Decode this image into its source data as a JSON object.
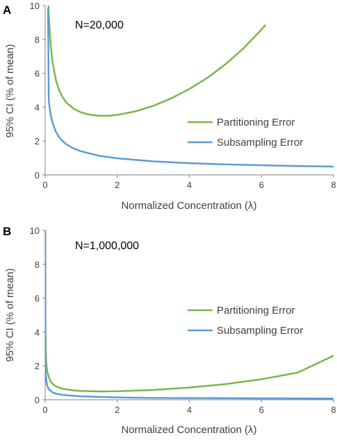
{
  "colors": {
    "partitioning": "#7ab648",
    "subsampling": "#5b9bd5",
    "axis": "#808080",
    "text": "#404040"
  },
  "chart_data": [
    {
      "panel_label": "A",
      "type": "line",
      "annotation": "N=20,000",
      "N": 20000,
      "xlabel": "Normalized Concentration (λ)",
      "ylabel": "95% CI (% of mean)",
      "xlim": [
        0,
        8
      ],
      "ylim": [
        0,
        10
      ],
      "xticks": [
        "0",
        "2",
        "4",
        "6",
        "8"
      ],
      "yticks": [
        "0",
        "2",
        "4",
        "6",
        "8",
        "10"
      ],
      "grid": false,
      "legend_position": "middle-right",
      "series": [
        {
          "name": "Partitioning Error",
          "color": "#7ab648",
          "x": [
            0.09,
            0.1,
            0.15,
            0.2,
            0.3,
            0.4,
            0.5,
            0.6,
            0.8,
            1.0,
            1.2,
            1.4,
            1.6,
            1.8,
            2.0,
            2.5,
            3.0,
            3.5,
            4.0,
            4.5,
            5.0,
            5.5,
            6.0,
            6.1
          ],
          "y": [
            10.0,
            9.4,
            7.73,
            6.73,
            5.58,
            4.94,
            4.53,
            4.25,
            3.89,
            3.69,
            3.57,
            3.51,
            3.49,
            3.5,
            3.54,
            3.75,
            4.08,
            4.52,
            5.07,
            5.73,
            6.53,
            7.47,
            8.58,
            8.83
          ]
        },
        {
          "name": "Subsampling Error",
          "color": "#5b9bd5",
          "x": [
            0.08,
            0.1,
            0.15,
            0.2,
            0.3,
            0.4,
            0.5,
            0.6,
            0.8,
            1.0,
            1.5,
            2.0,
            3.0,
            4.0,
            5.0,
            6.0,
            7.0,
            8.0
          ],
          "y": [
            9.8,
            4.38,
            3.58,
            3.1,
            2.53,
            2.19,
            1.96,
            1.79,
            1.55,
            1.39,
            1.13,
            0.98,
            0.8,
            0.69,
            0.62,
            0.57,
            0.52,
            0.49
          ]
        }
      ]
    },
    {
      "panel_label": "B",
      "type": "line",
      "annotation": "N=1,000,000",
      "N": 1000000,
      "xlabel": "Normalized Concentration (λ)",
      "ylabel": "95% CI (% of mean)",
      "xlim": [
        0,
        8
      ],
      "ylim": [
        0,
        10
      ],
      "xticks": [
        "0",
        "2",
        "4",
        "6",
        "8"
      ],
      "yticks": [
        "0",
        "2",
        "4",
        "6",
        "8",
        "10"
      ],
      "grid": false,
      "legend_position": "middle-right",
      "series": [
        {
          "name": "Partitioning Error",
          "color": "#7ab648",
          "x": [
            0.01,
            0.02,
            0.03,
            0.05,
            0.1,
            0.15,
            0.2,
            0.3,
            0.5,
            0.8,
            1.0,
            1.5,
            2.0,
            3.0,
            4.0,
            5.0,
            6.0,
            7.0,
            8.0
          ],
          "y": [
            3.9,
            2.8,
            2.2,
            1.75,
            1.33,
            1.09,
            0.95,
            0.79,
            0.64,
            0.55,
            0.52,
            0.49,
            0.5,
            0.58,
            0.72,
            0.92,
            1.21,
            1.6,
            2.6
          ]
        },
        {
          "name": "Subsampling Error",
          "color": "#5b9bd5",
          "x": [
            0.004,
            0.01,
            0.02,
            0.05,
            0.1,
            0.2,
            0.3,
            0.5,
            1.0,
            2.0,
            3.0,
            4.0,
            6.0,
            8.0
          ],
          "y": [
            10.0,
            1.96,
            1.39,
            0.88,
            0.62,
            0.44,
            0.36,
            0.28,
            0.2,
            0.14,
            0.11,
            0.1,
            0.08,
            0.07
          ]
        }
      ]
    }
  ]
}
